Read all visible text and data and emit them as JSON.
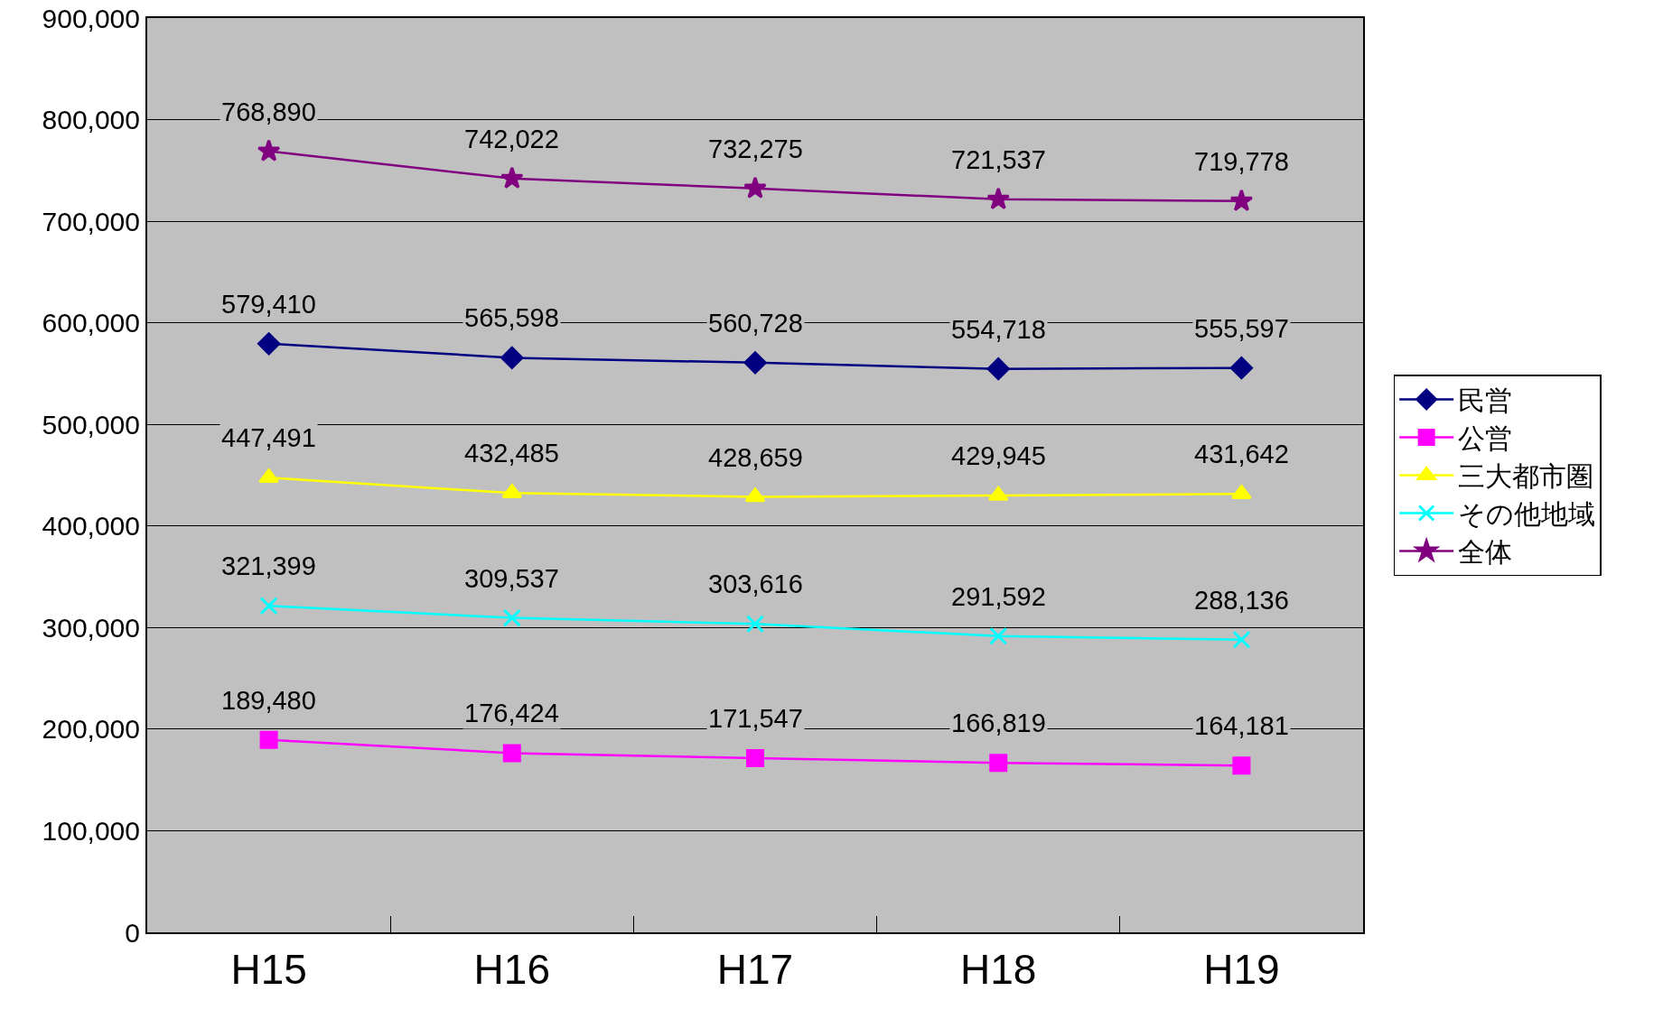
{
  "chart_data": {
    "type": "line",
    "categories": [
      "H15",
      "H16",
      "H17",
      "H18",
      "H19"
    ],
    "series": [
      {
        "name": "民営",
        "color": "#000080",
        "marker": "diamond",
        "values": [
          579410,
          565598,
          560728,
          554718,
          555597
        ],
        "value_labels": [
          "579,410",
          "565,598",
          "560,728",
          "554,718",
          "555,597"
        ]
      },
      {
        "name": "公営",
        "color": "#ff00ff",
        "marker": "square",
        "values": [
          189480,
          176424,
          171547,
          166819,
          164181
        ],
        "value_labels": [
          "189,480",
          "176,424",
          "171,547",
          "166,819",
          "164,181"
        ]
      },
      {
        "name": "三大都市圏",
        "color": "#ffff00",
        "marker": "triangle",
        "values": [
          447491,
          432485,
          428659,
          429945,
          431642
        ],
        "value_labels": [
          "447,491",
          "432,485",
          "428,659",
          "429,945",
          "431,642"
        ]
      },
      {
        "name": "その他地域",
        "color": "#00ffff",
        "marker": "cross",
        "values": [
          321399,
          309537,
          303616,
          291592,
          288136
        ],
        "value_labels": [
          "321,399",
          "309,537",
          "303,616",
          "291,592",
          "288,136"
        ]
      },
      {
        "name": "全体",
        "color": "#800080",
        "marker": "star",
        "values": [
          768890,
          742022,
          732275,
          721537,
          719778
        ],
        "value_labels": [
          "768,890",
          "742,022",
          "732,275",
          "721,537",
          "719,778"
        ]
      }
    ],
    "ylim": [
      0,
      900000
    ],
    "yticks": [
      {
        "value": 0,
        "label": "0"
      },
      {
        "value": 100000,
        "label": "100,000"
      },
      {
        "value": 200000,
        "label": "200,000"
      },
      {
        "value": 300000,
        "label": "300,000"
      },
      {
        "value": 400000,
        "label": "400,000"
      },
      {
        "value": 500000,
        "label": "500,000"
      },
      {
        "value": 600000,
        "label": "600,000"
      },
      {
        "value": 700000,
        "label": "700,000"
      },
      {
        "value": 800000,
        "label": "800,000"
      },
      {
        "value": 900000,
        "label": "900,000"
      }
    ],
    "grid": "y",
    "legend": "right",
    "line_style": "solid"
  }
}
